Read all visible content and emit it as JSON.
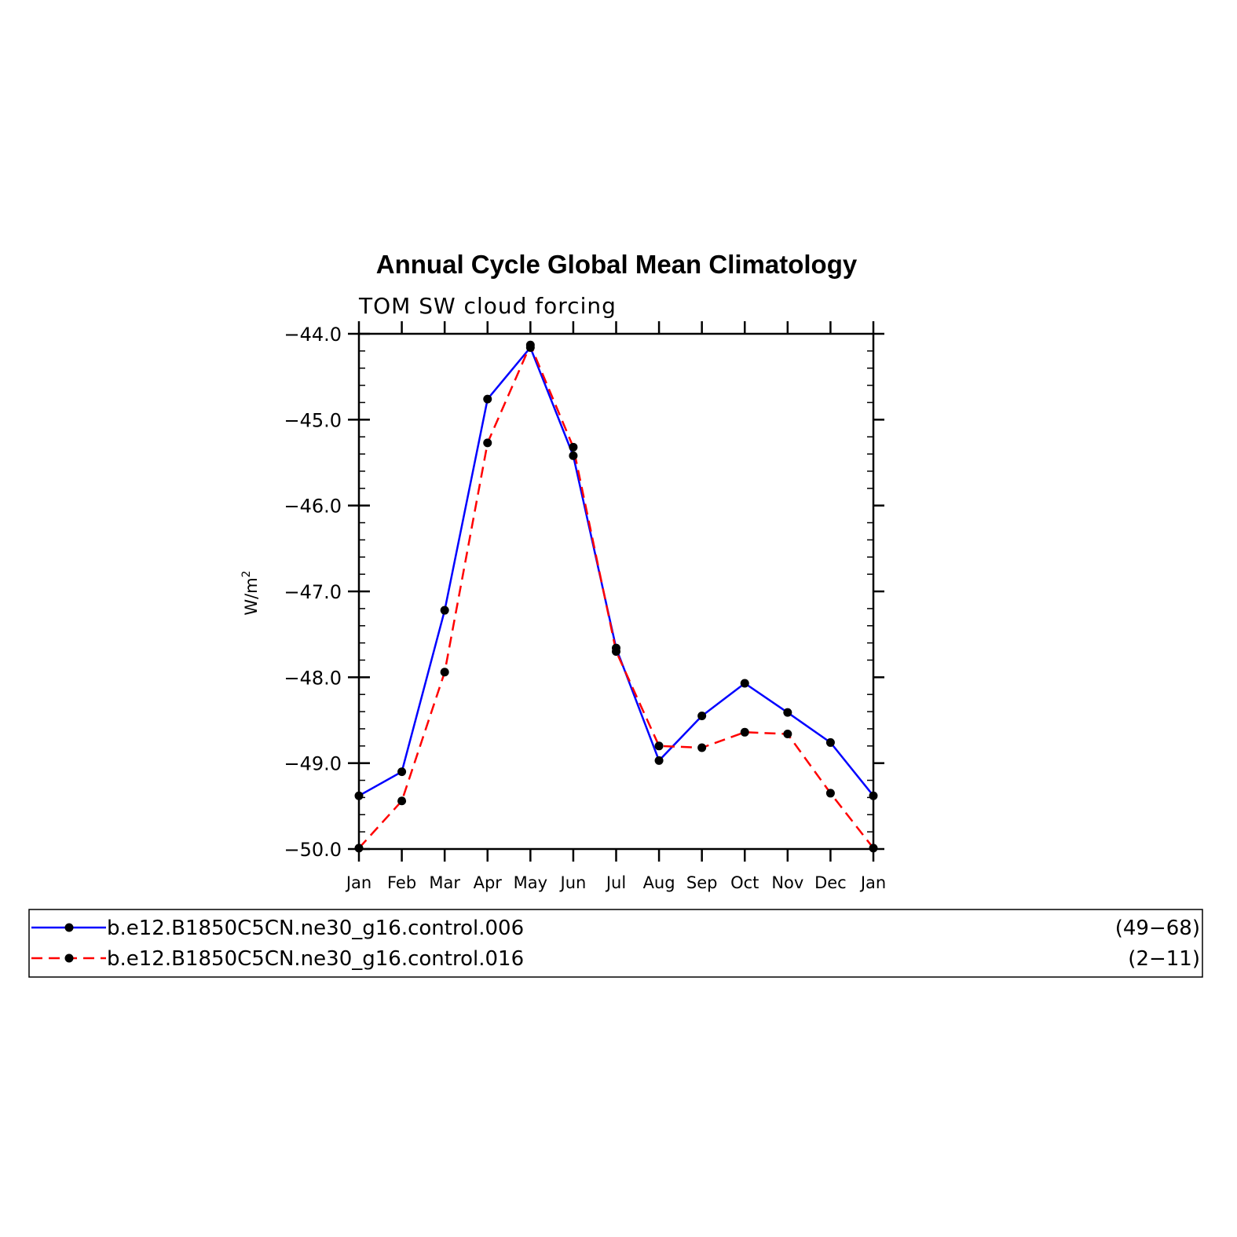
{
  "chart_data": {
    "type": "line",
    "title": "Annual Cycle Global Mean Climatology",
    "subtitle": "TOM SW cloud forcing",
    "xlabel": "",
    "ylabel": "W/m",
    "ylabel_superscript": "2",
    "categories": [
      "Jan",
      "Feb",
      "Mar",
      "Apr",
      "May",
      "Jun",
      "Jul",
      "Aug",
      "Sep",
      "Oct",
      "Nov",
      "Dec",
      "Jan"
    ],
    "ylim": [
      -50.0,
      -44.0
    ],
    "yticks": [
      -44.0,
      -45.0,
      -46.0,
      -47.0,
      -48.0,
      -49.0,
      -50.0
    ],
    "ytick_labels": [
      "−44.0",
      "−45.0",
      "−46.0",
      "−47.0",
      "−48.0",
      "−49.0",
      "−50.0"
    ],
    "grid": false,
    "legend_position": "bottom",
    "series": [
      {
        "name": "b.e12.B1850C5CN.ne30_g16.control.006",
        "years": "(49−68)",
        "color": "#0000ff",
        "style": "solid",
        "values": [
          -49.38,
          -49.1,
          -47.22,
          -44.76,
          -44.16,
          -45.42,
          -47.66,
          -48.97,
          -48.45,
          -48.07,
          -48.41,
          -48.76,
          -49.38
        ]
      },
      {
        "name": "b.e12.B1850C5CN.ne30_g16.control.016",
        "years": "(2−11)",
        "color": "#ff0000",
        "style": "dashed",
        "values": [
          -49.99,
          -49.44,
          -47.94,
          -45.27,
          -44.13,
          -45.32,
          -47.7,
          -48.8,
          -48.82,
          -48.64,
          -48.66,
          -49.35,
          -49.99
        ]
      }
    ],
    "marker_color": "#000000"
  }
}
